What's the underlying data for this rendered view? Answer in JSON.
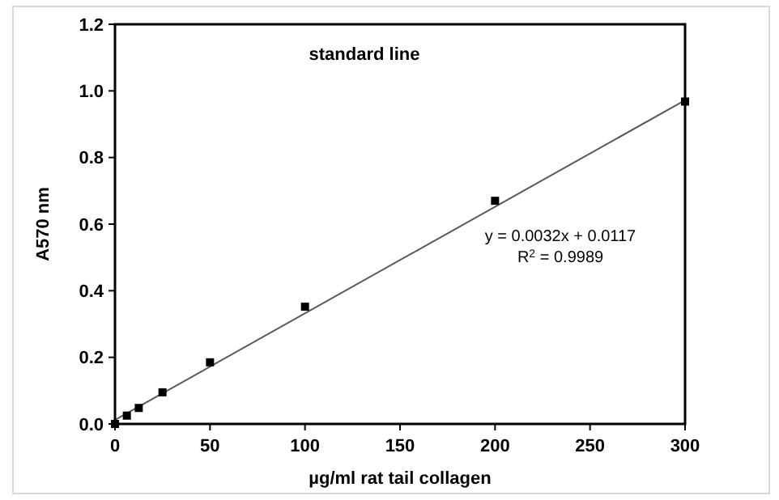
{
  "chart_data": {
    "type": "scatter",
    "title": "standard line",
    "xlabel": "µg/ml rat tail collagen",
    "ylabel": "A570 nm",
    "x": [
      0,
      6.25,
      12.5,
      25,
      50,
      100,
      200,
      300
    ],
    "series": [
      {
        "color": "#000000",
        "marker": "square",
        "values": [
          0,
          0.025,
          0.048,
          0.095,
          0.185,
          0.352,
          0.67,
          0.968
        ]
      },
      {
        "type": "line",
        "color": "#595959",
        "line_style": "solid",
        "marker": "none",
        "x": [
          0,
          300
        ],
        "values": [
          0.012,
          0.972
        ]
      }
    ],
    "annotations": [
      "y = 0.0032x + 0.0117",
      "R$^{2}$ = 0.9989"
    ],
    "xlim": [
      0,
      300
    ],
    "xticks": [
      0,
      50,
      100,
      150,
      200,
      250,
      300
    ],
    "ylim": [
      0,
      1.2
    ],
    "yticks": [
      {
        "value": 0,
        "label": "0.0"
      },
      0.2,
      0.4,
      0.6,
      0.8,
      {
        "value": 1,
        "label": "1.0"
      },
      1.2
    ],
    "grid": false
  }
}
